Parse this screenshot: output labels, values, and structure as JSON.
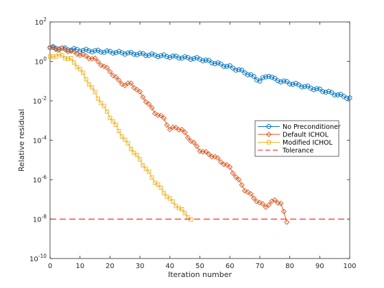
{
  "chart_data": {
    "type": "line",
    "title": "",
    "xlabel": "Iteration number",
    "ylabel": "Relative residual",
    "xlim": [
      0,
      100
    ],
    "ylim_exponent": [
      -10,
      2
    ],
    "yscale": "log",
    "xticks": [
      0,
      10,
      20,
      30,
      40,
      50,
      60,
      70,
      80,
      90,
      100
    ],
    "yticks": [
      {
        "exp": -10,
        "base": "10",
        "sup": "-10"
      },
      {
        "exp": -8,
        "base": "10",
        "sup": "-8"
      },
      {
        "exp": -6,
        "base": "10",
        "sup": "-6"
      },
      {
        "exp": -4,
        "base": "10",
        "sup": "-4"
      },
      {
        "exp": -2,
        "base": "10",
        "sup": "-2"
      },
      {
        "exp": 0,
        "base": "10",
        "sup": "0"
      },
      {
        "exp": 2,
        "base": "10",
        "sup": "2"
      }
    ],
    "grid": false,
    "legend_position": "right",
    "series": [
      {
        "name": "No Preconditioner",
        "color": "#0072BD",
        "marker": "hexagram",
        "log10_points": [
          [
            0,
            0.7
          ],
          [
            10,
            0.57
          ],
          [
            20,
            0.48
          ],
          [
            30,
            0.37
          ],
          [
            40,
            0.25
          ],
          [
            50,
            0.12
          ],
          [
            60,
            -0.28
          ],
          [
            65,
            -0.55
          ],
          [
            68,
            -0.8
          ],
          [
            70,
            -0.98
          ],
          [
            73,
            -0.7
          ],
          [
            75,
            -0.92
          ],
          [
            80,
            -1.1
          ],
          [
            90,
            -1.45
          ],
          [
            100,
            -1.85
          ]
        ]
      },
      {
        "name": "Default ICHOL",
        "color": "#D95319",
        "marker": "diamond",
        "log10_points": [
          [
            0,
            0.7
          ],
          [
            5,
            0.6
          ],
          [
            10,
            0.35
          ],
          [
            15,
            0.1
          ],
          [
            20,
            -0.5
          ],
          [
            23,
            -1.0
          ],
          [
            25,
            -1.2
          ],
          [
            27,
            -1.12
          ],
          [
            30,
            -1.6
          ],
          [
            35,
            -2.6
          ],
          [
            38,
            -2.9
          ],
          [
            40,
            -3.45
          ],
          [
            42,
            -3.35
          ],
          [
            44,
            -3.48
          ],
          [
            47,
            -4.0
          ],
          [
            50,
            -4.5
          ],
          [
            55,
            -4.85
          ],
          [
            60,
            -5.4
          ],
          [
            65,
            -6.5
          ],
          [
            70,
            -7.2
          ],
          [
            72,
            -7.35
          ],
          [
            75,
            -7.05
          ],
          [
            77,
            -7.2
          ],
          [
            79,
            -8.15
          ]
        ]
      },
      {
        "name": "Modified ICHOL",
        "color": "#EDB120",
        "marker": "square",
        "log10_points": [
          [
            0,
            0.25
          ],
          [
            3,
            0.32
          ],
          [
            7,
            0.1
          ],
          [
            10,
            -0.4
          ],
          [
            15,
            -1.6
          ],
          [
            20,
            -2.8
          ],
          [
            25,
            -4.0
          ],
          [
            30,
            -5.0
          ],
          [
            35,
            -6.1
          ],
          [
            40,
            -7.0
          ],
          [
            45,
            -7.7
          ],
          [
            47,
            -8.02
          ]
        ]
      },
      {
        "name": "Tolerance",
        "color": "#FF0000",
        "style": "dashed",
        "log10_points": [
          [
            0,
            -8
          ],
          [
            100,
            -8
          ]
        ]
      }
    ]
  }
}
